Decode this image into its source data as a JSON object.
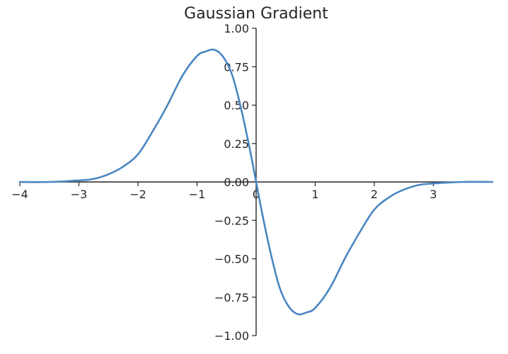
{
  "chart_data": {
    "type": "line",
    "title": "Gaussian Gradient",
    "xlabel": "",
    "ylabel": "",
    "xlim": [
      -4,
      4
    ],
    "ylim": [
      -1.0,
      1.0
    ],
    "grid": false,
    "spines": "centered at origin",
    "x_ticks": [
      -4,
      -3,
      -2,
      -1,
      0,
      1,
      2,
      3
    ],
    "x_tick_labels": [
      "−4",
      "−3",
      "−2",
      "−1",
      "0",
      "1",
      "2",
      "3"
    ],
    "y_ticks": [
      1.0,
      0.75,
      0.5,
      0.25,
      0.0,
      -0.25,
      -0.5,
      -0.75,
      -1.0
    ],
    "y_tick_labels": [
      "1.00",
      "0.75",
      "0.50",
      "0.25",
      "0.00",
      "−0.25",
      "−0.50",
      "−0.75",
      "−1.00"
    ],
    "series": [
      {
        "color": "#4a86c2",
        "x": [
          -4.0,
          -3.5,
          -3.0,
          -2.75,
          -2.5,
          -2.25,
          -2.0,
          -1.75,
          -1.5,
          -1.25,
          -1.0,
          -0.85,
          -0.7,
          -0.55,
          -0.4,
          -0.25,
          -0.1,
          0.0,
          0.1,
          0.25,
          0.4,
          0.55,
          0.7,
          0.85,
          1.0,
          1.25,
          1.5,
          1.75,
          2.0,
          2.25,
          2.5,
          2.75,
          3.0,
          3.5,
          4.0
        ],
        "y": [
          0.0,
          0.0,
          0.01,
          0.02,
          0.05,
          0.1,
          0.18,
          0.33,
          0.5,
          0.69,
          0.82,
          0.85,
          0.86,
          0.81,
          0.69,
          0.47,
          0.2,
          0.0,
          -0.2,
          -0.47,
          -0.69,
          -0.81,
          -0.86,
          -0.85,
          -0.82,
          -0.69,
          -0.5,
          -0.33,
          -0.18,
          -0.1,
          -0.05,
          -0.02,
          -0.01,
          0.0,
          0.0
        ]
      }
    ]
  }
}
